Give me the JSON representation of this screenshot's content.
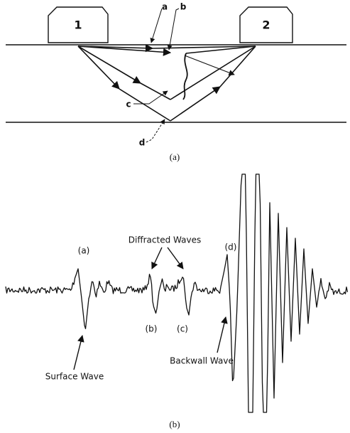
{
  "figure_a": {
    "probes": [
      "1",
      "2"
    ],
    "ray_labels": [
      "a",
      "b",
      "c",
      "d"
    ],
    "caption": "(a)"
  },
  "figure_b": {
    "title_annotation": "Diffracted Waves",
    "peak_labels": [
      "(a)",
      "(b)",
      "(c)",
      "(d)"
    ],
    "surface_wave": "Surface Wave",
    "backwall_wave": "Backwall Wave",
    "caption": "(b)"
  }
}
